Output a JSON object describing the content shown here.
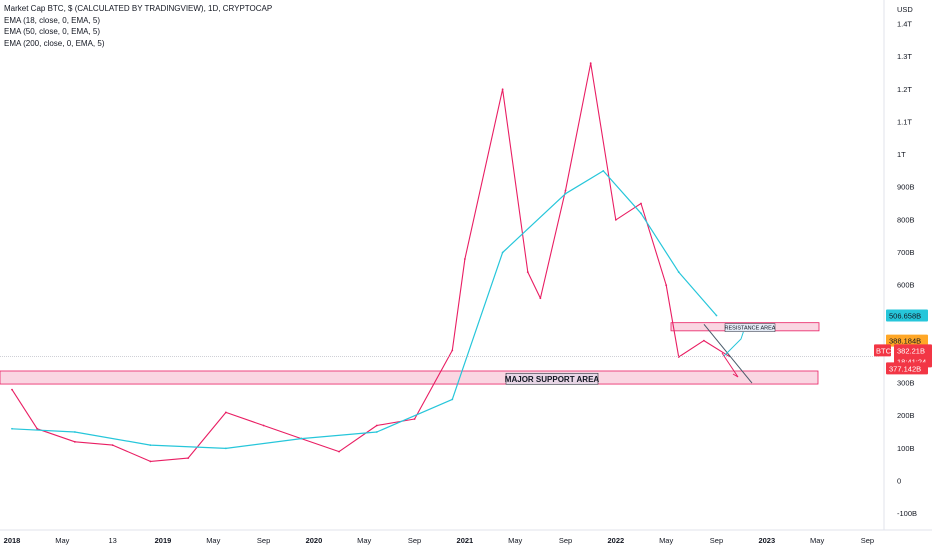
{
  "header": {
    "title": "Market Cap BTC, $ (CALCULATED BY TRADINGVIEW), 1D, CRYPTOCAP",
    "indicators": [
      "EMA (18, close, 0, EMA, 5)",
      "EMA (50, close, 0, EMA, 5)",
      "EMA (200, close, 0, EMA, 5)"
    ]
  },
  "colors": {
    "ema18": "#ef5350",
    "ema50": "#ffa726",
    "ema200": "#26c6da",
    "price": "#e91e63",
    "support_fill": "#f8c8d8",
    "support_border": "#e91e63",
    "resistance_fill": "#f8c8d8",
    "trendline": "#2962ff",
    "projection": "#e91e63",
    "tag_blue": "#26c6da",
    "tag_orange": "#ffa726",
    "tag_red": "#f23645"
  },
  "chart_data": {
    "type": "line",
    "title": "Market Cap BTC, $ (CALCULATED BY TRADINGVIEW), 1D, CRYPTOCAP",
    "y_unit": "USD",
    "y_ticks": [
      "1.4T",
      "1.3T",
      "1.2T",
      "1.1T",
      "1T",
      "900B",
      "800B",
      "700B",
      "600B",
      "500B",
      "300B",
      "200B",
      "100B",
      "0",
      "-100B"
    ],
    "x_ticks": [
      {
        "label": "2018",
        "bold": true
      },
      {
        "label": "May",
        "bold": false
      },
      {
        "label": "13",
        "bold": false
      },
      {
        "label": "2019",
        "bold": true
      },
      {
        "label": "May",
        "bold": false
      },
      {
        "label": "Sep",
        "bold": false
      },
      {
        "label": "2020",
        "bold": true
      },
      {
        "label": "May",
        "bold": false
      },
      {
        "label": "Sep",
        "bold": false
      },
      {
        "label": "2021",
        "bold": true
      },
      {
        "label": "May",
        "bold": false
      },
      {
        "label": "Sep",
        "bold": false
      },
      {
        "label": "2022",
        "bold": true
      },
      {
        "label": "May",
        "bold": false
      },
      {
        "label": "Sep",
        "bold": false
      },
      {
        "label": "2023",
        "bold": true
      },
      {
        "label": "May",
        "bold": false
      },
      {
        "label": "Sep",
        "bold": false
      }
    ],
    "series": [
      {
        "name": "BTC",
        "x": [
          "2018-01",
          "2018-03",
          "2018-06",
          "2018-09",
          "2018-12",
          "2019-03",
          "2019-06",
          "2019-09",
          "2019-12",
          "2020-03",
          "2020-06",
          "2020-09",
          "2020-12",
          "2021-01",
          "2021-04",
          "2021-06",
          "2021-07",
          "2021-09",
          "2021-11",
          "2022-01",
          "2022-03",
          "2022-05",
          "2022-06",
          "2022-08",
          "2022-10"
        ],
        "values": [
          280,
          160,
          120,
          110,
          60,
          70,
          210,
          170,
          130,
          90,
          170,
          190,
          400,
          680,
          1200,
          640,
          560,
          890,
          1280,
          800,
          850,
          600,
          380,
          430,
          382
        ]
      },
      {
        "name": "EMA 200",
        "x": [
          "2018-01",
          "2018-06",
          "2018-12",
          "2019-06",
          "2019-12",
          "2020-06",
          "2020-12",
          "2021-04",
          "2021-09",
          "2021-12",
          "2022-03",
          "2022-06",
          "2022-09"
        ],
        "values": [
          160,
          150,
          110,
          100,
          130,
          150,
          250,
          700,
          880,
          950,
          820,
          640,
          507
        ]
      }
    ],
    "annotations": {
      "major_support": "MAJOR SUPPORT AREA",
      "resistance": "RESISTANCE AREA"
    },
    "price_tags": {
      "ema200": "506.658B",
      "ema50": "388.184B",
      "symbol": "BTC",
      "last": "382.21B",
      "countdown": "18:41:24",
      "ema18": "377.142B"
    }
  }
}
